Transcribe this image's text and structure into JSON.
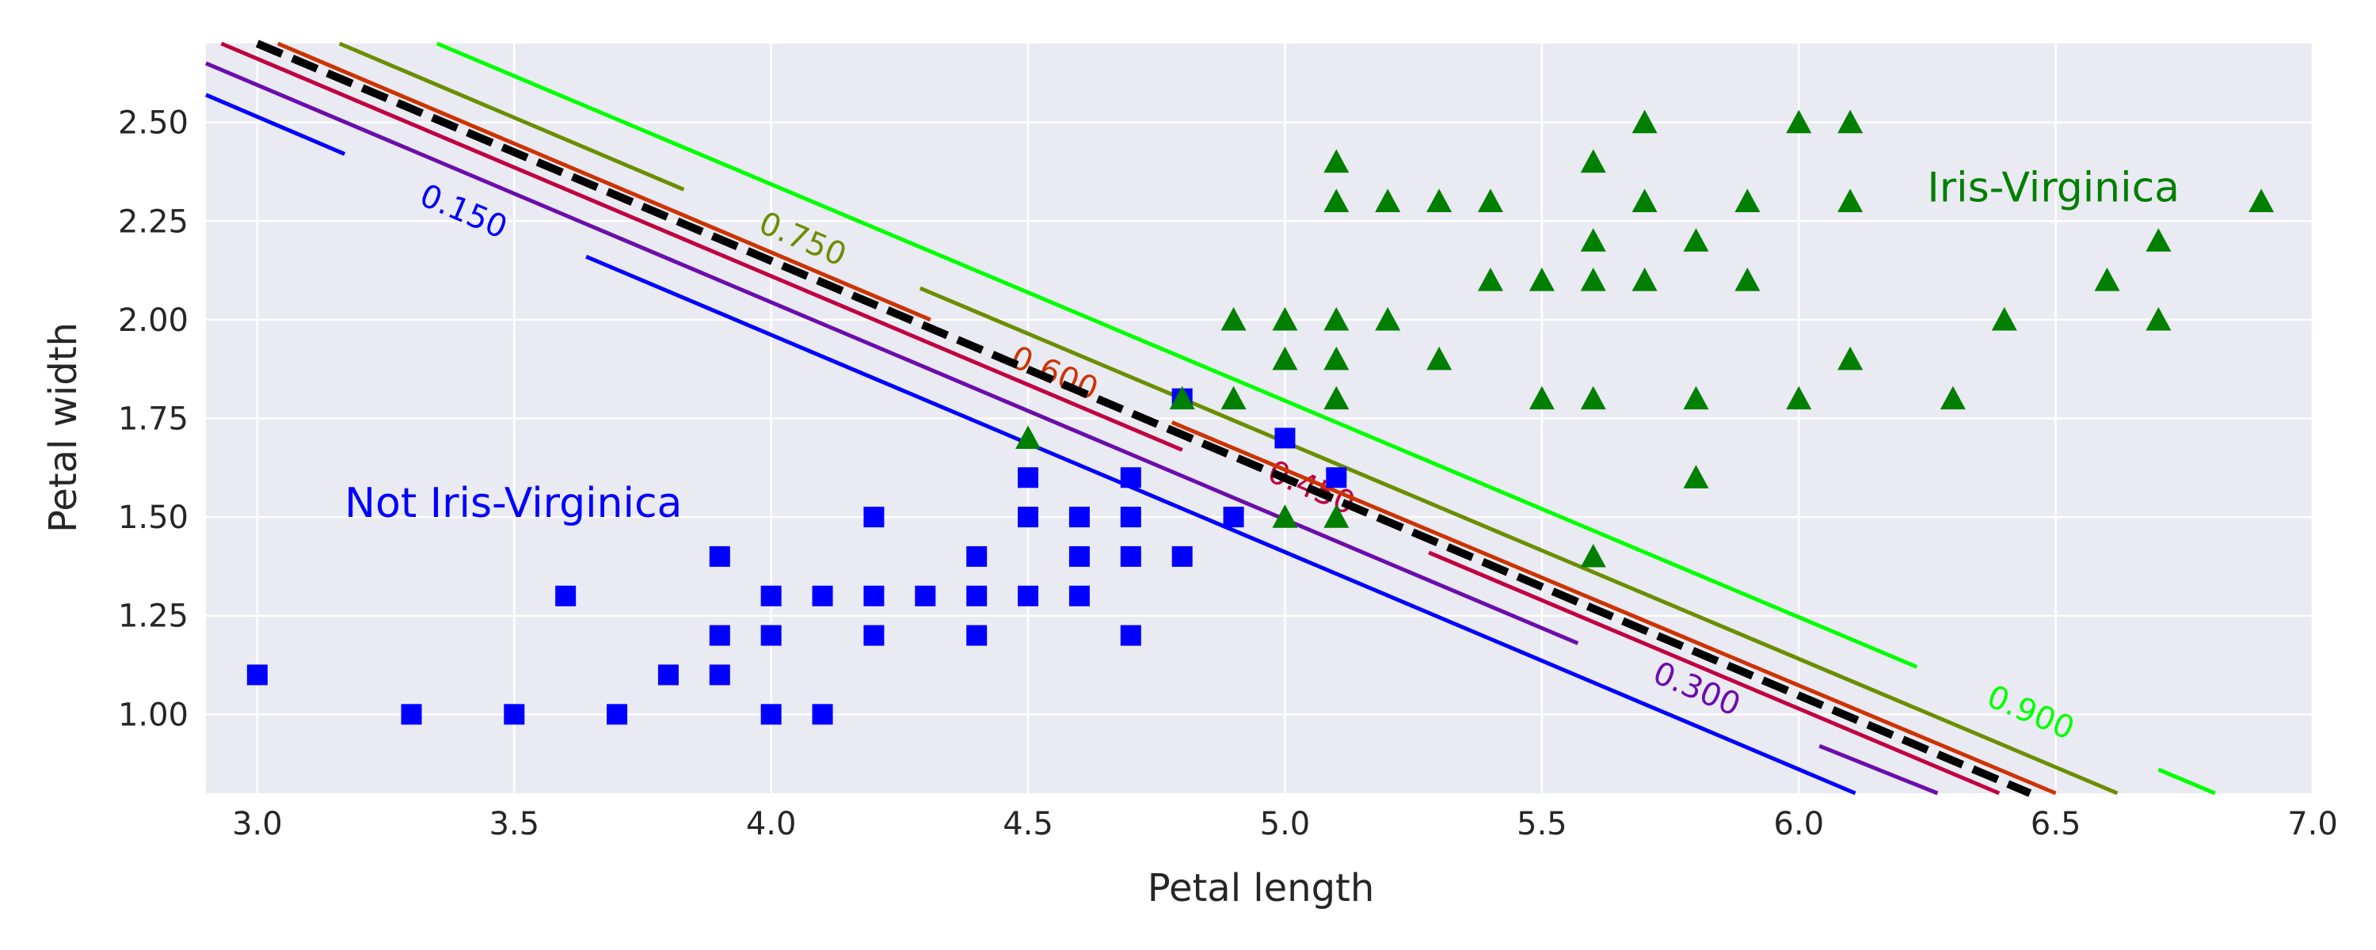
{
  "chart_data": {
    "type": "scatter",
    "xlabel": "Petal length",
    "ylabel": "Petal width",
    "xlim": [
      2.9,
      7.0
    ],
    "ylim": [
      0.8,
      2.7
    ],
    "grid": true,
    "background": "#EAEAF2",
    "xticks": [
      "3.0",
      "3.5",
      "4.0",
      "4.5",
      "5.0",
      "5.5",
      "6.0",
      "6.5",
      "7.0"
    ],
    "xtick_values": [
      3.0,
      3.5,
      4.0,
      4.5,
      5.0,
      5.5,
      6.0,
      6.5,
      7.0
    ],
    "yticks": [
      "1.00",
      "1.25",
      "1.50",
      "1.75",
      "2.00",
      "2.25",
      "2.50"
    ],
    "ytick_values": [
      1.0,
      1.25,
      1.5,
      1.75,
      2.0,
      2.25,
      2.5
    ],
    "series": [
      {
        "name": "Not Iris-Virginica",
        "marker": "square",
        "color": "#0000FF",
        "points": [
          [
            3.0,
            1.1
          ],
          [
            3.3,
            1.0
          ],
          [
            3.5,
            1.0
          ],
          [
            3.6,
            1.3
          ],
          [
            3.7,
            1.0
          ],
          [
            3.8,
            1.1
          ],
          [
            3.9,
            1.4
          ],
          [
            3.9,
            1.2
          ],
          [
            3.9,
            1.1
          ],
          [
            4.0,
            1.3
          ],
          [
            4.0,
            1.2
          ],
          [
            4.0,
            1.0
          ],
          [
            4.1,
            1.3
          ],
          [
            4.1,
            1.0
          ],
          [
            4.2,
            1.5
          ],
          [
            4.2,
            1.3
          ],
          [
            4.2,
            1.2
          ],
          [
            4.3,
            1.3
          ],
          [
            4.4,
            1.4
          ],
          [
            4.4,
            1.3
          ],
          [
            4.4,
            1.2
          ],
          [
            4.5,
            1.6
          ],
          [
            4.5,
            1.5
          ],
          [
            4.5,
            1.3
          ],
          [
            4.6,
            1.5
          ],
          [
            4.6,
            1.4
          ],
          [
            4.6,
            1.3
          ],
          [
            4.7,
            1.6
          ],
          [
            4.7,
            1.5
          ],
          [
            4.7,
            1.4
          ],
          [
            4.7,
            1.2
          ],
          [
            4.8,
            1.8
          ],
          [
            4.8,
            1.4
          ],
          [
            4.9,
            1.5
          ],
          [
            5.0,
            1.7
          ],
          [
            5.1,
            1.6
          ]
        ]
      },
      {
        "name": "Iris-Virginica",
        "marker": "triangle",
        "color": "#007F00",
        "points": [
          [
            4.5,
            1.7
          ],
          [
            4.8,
            1.8
          ],
          [
            4.9,
            2.0
          ],
          [
            4.9,
            1.8
          ],
          [
            5.0,
            2.0
          ],
          [
            5.0,
            1.9
          ],
          [
            5.0,
            1.5
          ],
          [
            5.1,
            2.4
          ],
          [
            5.1,
            2.3
          ],
          [
            5.1,
            2.0
          ],
          [
            5.1,
            1.9
          ],
          [
            5.1,
            1.8
          ],
          [
            5.1,
            1.5
          ],
          [
            5.2,
            2.3
          ],
          [
            5.2,
            2.0
          ],
          [
            5.3,
            2.3
          ],
          [
            5.3,
            1.9
          ],
          [
            5.4,
            2.3
          ],
          [
            5.4,
            2.1
          ],
          [
            5.5,
            2.1
          ],
          [
            5.5,
            1.8
          ],
          [
            5.6,
            2.4
          ],
          [
            5.6,
            2.2
          ],
          [
            5.6,
            2.1
          ],
          [
            5.6,
            1.8
          ],
          [
            5.6,
            1.4
          ],
          [
            5.7,
            2.5
          ],
          [
            5.7,
            2.3
          ],
          [
            5.7,
            2.1
          ],
          [
            5.8,
            2.2
          ],
          [
            5.8,
            1.8
          ],
          [
            5.8,
            1.6
          ],
          [
            5.9,
            2.3
          ],
          [
            5.9,
            2.1
          ],
          [
            6.0,
            2.5
          ],
          [
            6.0,
            1.8
          ],
          [
            6.1,
            2.5
          ],
          [
            6.1,
            2.3
          ],
          [
            6.1,
            1.9
          ],
          [
            6.3,
            1.8
          ],
          [
            6.4,
            2.0
          ],
          [
            6.6,
            2.1
          ],
          [
            6.7,
            2.2
          ],
          [
            6.7,
            2.0
          ],
          [
            6.9,
            2.3
          ]
        ]
      }
    ],
    "decision_boundary": {
      "style": "dashed",
      "color": "#000000",
      "segments": [
        [
          [
            3.0,
            2.7
          ],
          [
            6.45,
            0.8
          ]
        ]
      ]
    },
    "contours": [
      {
        "level": "0.150",
        "color": "#0000FF",
        "label_at": [
          3.4,
          2.27
        ],
        "segments": [
          [
            [
              2.9,
              2.57
            ],
            [
              3.17,
              2.42
            ]
          ],
          [
            [
              3.64,
              2.16
            ],
            [
              6.11,
              0.8
            ]
          ]
        ]
      },
      {
        "level": "0.300",
        "color": "#6A0DAD",
        "label_at": [
          5.8,
          1.06
        ],
        "segments": [
          [
            [
              2.9,
              2.65
            ],
            [
              5.57,
              1.18
            ]
          ],
          [
            [
              6.04,
              0.92
            ],
            [
              6.27,
              0.8
            ]
          ]
        ]
      },
      {
        "level": "0.450",
        "color": "#C00040",
        "label_at": [
          5.05,
          1.57
        ],
        "segments": [
          [
            [
              2.93,
              2.7
            ],
            [
              4.8,
              1.67
            ]
          ],
          [
            [
              5.28,
              1.41
            ],
            [
              6.39,
              0.8
            ]
          ]
        ]
      },
      {
        "level": "0.600",
        "color": "#CC3300",
        "label_at": [
          4.55,
          1.86
        ],
        "segments": [
          [
            [
              3.04,
              2.7
            ],
            [
              4.31,
              2.0
            ]
          ],
          [
            [
              4.78,
              1.74
            ],
            [
              6.5,
              0.8
            ]
          ]
        ]
      },
      {
        "level": "0.750",
        "color": "#6B8E00",
        "label_at": [
          4.06,
          2.2
        ],
        "segments": [
          [
            [
              3.16,
              2.7
            ],
            [
              3.83,
              2.33
            ]
          ],
          [
            [
              4.29,
              2.08
            ],
            [
              6.62,
              0.8
            ]
          ]
        ]
      },
      {
        "level": "0.900",
        "color": "#00FF00",
        "label_at": [
          6.45,
          1.0
        ],
        "segments": [
          [
            [
              3.35,
              2.7
            ],
            [
              6.23,
              1.12
            ]
          ],
          [
            [
              6.7,
              0.86
            ],
            [
              6.81,
              0.8
            ]
          ]
        ]
      }
    ],
    "annotations": [
      {
        "text": "Not Iris-Virginica",
        "x": 3.17,
        "y": 1.5,
        "color": "#0000FF"
      },
      {
        "text": "Iris-Virginica",
        "x": 6.25,
        "y": 2.3,
        "color": "#007F00"
      }
    ]
  }
}
